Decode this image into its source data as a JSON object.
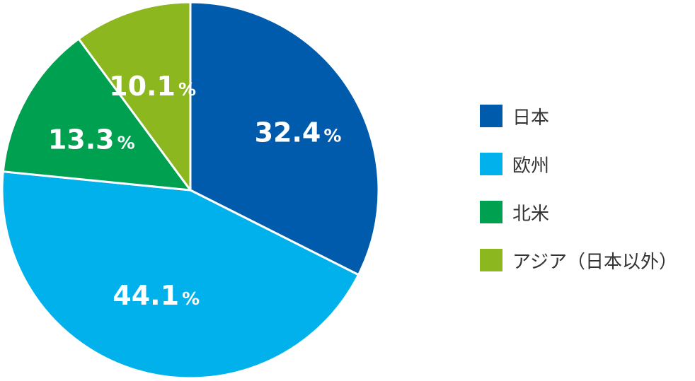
{
  "chart_data": {
    "type": "pie",
    "title": "",
    "start_angle_deg": 0,
    "direction": "clockwise",
    "slices": [
      {
        "label": "日本",
        "value": 32.4,
        "color": "#005BAC"
      },
      {
        "label": "欧州",
        "value": 44.1,
        "color": "#00B1EB"
      },
      {
        "label": "北米",
        "value": 13.3,
        "color": "#00A051"
      },
      {
        "label": "アジア（日本以外）",
        "value": 10.1,
        "color": "#8DB71E"
      }
    ],
    "value_suffix": "%",
    "legend": "right"
  }
}
